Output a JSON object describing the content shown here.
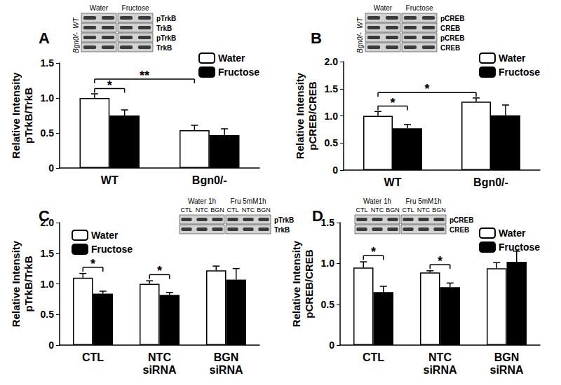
{
  "chart_data": [
    {
      "type": "bar",
      "title": "A",
      "y_label": "Relative Intensity\npTrkB/TrkB",
      "categories": [
        "WT",
        "Bgn0/-"
      ],
      "series": [
        {
          "name": "Water",
          "color": "#ffffff",
          "values": [
            1.0,
            0.54
          ],
          "errors": [
            0.06,
            0.07
          ]
        },
        {
          "name": "Fructose",
          "color": "#000000",
          "values": [
            0.75,
            0.47
          ],
          "errors": [
            0.08,
            0.09
          ]
        }
      ],
      "ylim": [
        0,
        1.5
      ],
      "yticks": [
        0,
        0.5,
        {
          "value": 1,
          "label": "1.0"
        },
        1.5
      ],
      "grid": false,
      "legend": "upper right",
      "annotations": [
        {
          "text": "*",
          "from": [
            0,
            0
          ],
          "to": [
            0,
            1
          ]
        },
        {
          "text": "**",
          "from": [
            0,
            0
          ],
          "to": [
            1,
            0
          ]
        }
      ],
      "blot": {
        "columns": [
          "Water",
          "Fructose"
        ],
        "rows": [
          "pTrkB",
          "TrkB",
          "pTrkB",
          "TrkB"
        ],
        "groups": [
          "WT",
          "Bgn0/-"
        ]
      }
    },
    {
      "type": "bar",
      "title": "B",
      "y_label": "Relative Intensity\npCREB/CREB",
      "categories": [
        "WT",
        "Bgn0/-"
      ],
      "series": [
        {
          "name": "Water",
          "color": "#ffffff",
          "values": [
            1.0,
            1.26
          ],
          "errors": [
            0.08,
            0.07
          ]
        },
        {
          "name": "Fructose",
          "color": "#000000",
          "values": [
            0.77,
            1.01
          ],
          "errors": [
            0.07,
            0.19
          ]
        }
      ],
      "ylim": [
        0,
        2
      ],
      "yticks": [
        0,
        0.5,
        {
          "value": 1,
          "label": "1.0"
        },
        1.5,
        {
          "value": 2,
          "label": "2.0"
        }
      ],
      "grid": false,
      "legend": "upper right",
      "annotations": [
        {
          "text": "*",
          "from": [
            0,
            0
          ],
          "to": [
            0,
            1
          ]
        },
        {
          "text": "*",
          "from": [
            0,
            0
          ],
          "to": [
            1,
            0
          ]
        }
      ],
      "blot": {
        "columns": [
          "Water",
          "Fructose"
        ],
        "rows": [
          "pCREB",
          "CREB",
          "pCREB",
          "CREB"
        ],
        "groups": [
          "WT",
          "Bgn0/-"
        ]
      }
    },
    {
      "type": "bar",
      "title": "C",
      "y_label": "Relative Intensity\npTrkB/TrkB",
      "categories": [
        "CTL",
        "NTC\nsiRNA",
        "BGN\nsiRNA"
      ],
      "series": [
        {
          "name": "Water",
          "color": "#ffffff",
          "values": [
            1.1,
            1.0,
            1.22
          ],
          "errors": [
            0.07,
            0.05,
            0.07
          ]
        },
        {
          "name": "Fructose",
          "color": "#000000",
          "values": [
            0.84,
            0.82,
            1.07
          ],
          "errors": [
            0.04,
            0.04,
            0.18
          ]
        }
      ],
      "ylim": [
        0,
        2
      ],
      "yticks": [
        0,
        0.5,
        {
          "value": 1,
          "label": "1.0"
        },
        1.5,
        {
          "value": 2,
          "label": "2.0"
        }
      ],
      "grid": false,
      "legend": "upper left",
      "annotations": [
        {
          "text": "*",
          "from": [
            0,
            0
          ],
          "to": [
            0,
            1
          ]
        },
        {
          "text": "*",
          "from": [
            1,
            0
          ],
          "to": [
            1,
            1
          ]
        }
      ],
      "blot": {
        "columns": [
          "Water 1h",
          "Fru 5mM1h"
        ],
        "lanes": [
          "CTL",
          "NTC",
          "BGN"
        ],
        "rows": [
          "pTrkB",
          "TrkB"
        ]
      }
    },
    {
      "type": "bar",
      "title": "D",
      "y_label": "Relative Intensity\npCREB/CREB",
      "categories": [
        "CTL",
        "NTC\nsiRNA",
        "BGN\nsiRNA"
      ],
      "series": [
        {
          "name": "Water",
          "color": "#ffffff",
          "values": [
            0.95,
            0.89,
            0.94
          ],
          "errors": [
            0.07,
            0.02,
            0.07
          ]
        },
        {
          "name": "Fructose",
          "color": "#000000",
          "values": [
            0.65,
            0.71,
            1.02
          ],
          "errors": [
            0.07,
            0.05,
            0.13
          ]
        }
      ],
      "ylim": [
        0,
        1.5
      ],
      "yticks": [
        0,
        0.5,
        {
          "value": 1,
          "label": "1.0"
        },
        1.5
      ],
      "grid": false,
      "legend": "upper right",
      "annotations": [
        {
          "text": "*",
          "from": [
            0,
            0
          ],
          "to": [
            0,
            1
          ]
        },
        {
          "text": "*",
          "from": [
            1,
            0
          ],
          "to": [
            1,
            1
          ]
        }
      ],
      "blot": {
        "columns": [
          "Water 1h",
          "Fru 5mM1h"
        ],
        "lanes": [
          "CTL",
          "NTC",
          "BGN"
        ],
        "rows": [
          "pCREB",
          "CREB"
        ]
      }
    }
  ]
}
